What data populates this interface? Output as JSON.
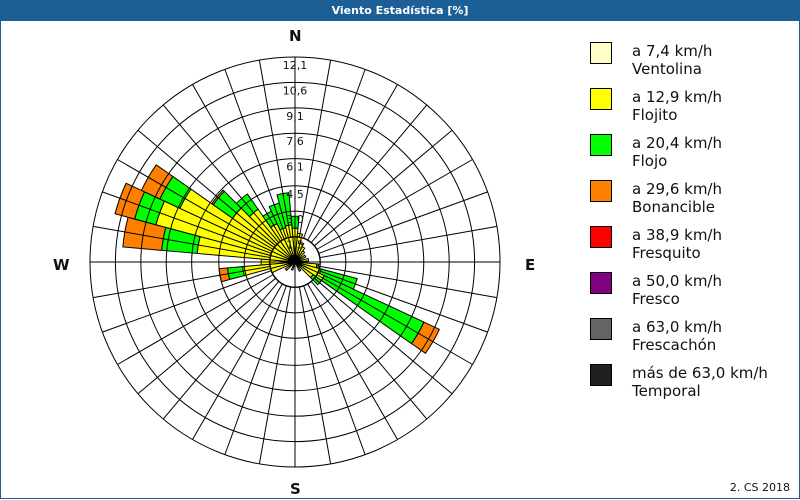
{
  "window": {
    "title": "Viento Estadística [%]"
  },
  "footer": {
    "copyright": "2. CS 2018"
  },
  "compass": {
    "N": "N",
    "E": "E",
    "S": "S",
    "W": "W"
  },
  "legend": [
    {
      "range": "a 7,4 km/h",
      "name": "Ventolina",
      "color": "#ffffc8"
    },
    {
      "range": "a 12,9 km/h",
      "name": "Flojito",
      "color": "#ffff00"
    },
    {
      "range": "a 20,4 km/h",
      "name": "Flojo",
      "color": "#00ff00"
    },
    {
      "range": "a 29,6 km/h",
      "name": "Bonancible",
      "color": "#ff8000"
    },
    {
      "range": "a 38,9 km/h",
      "name": "Fresquito",
      "color": "#ff0000"
    },
    {
      "range": "a 50,0 km/h",
      "name": "Fresco",
      "color": "#800080"
    },
    {
      "range": "a 63,0 km/h",
      "name": "Frescachón",
      "color": "#646464"
    },
    {
      "range": "más de 63,0 km/h",
      "name": "Temporal",
      "color": "#202020"
    }
  ],
  "chart_data": {
    "type": "polar-bar",
    "title": "Viento Estadística [%]",
    "radial_ticks": [
      "1,5",
      "3,0",
      "4,5",
      "6,1",
      "7,6",
      "9,1",
      "10,6",
      "12,1"
    ],
    "radial_values": [
      1.5,
      3.0,
      4.5,
      6.1,
      7.6,
      9.1,
      10.6,
      12.1
    ],
    "rmax": 12.1,
    "sector_width_deg": 10,
    "series_names": [
      "Ventolina",
      "Flojito",
      "Flojo",
      "Bonancible"
    ],
    "sectors": [
      {
        "dir": 0,
        "cum": [
          0.4,
          2.0,
          2.7
        ]
      },
      {
        "dir": 10,
        "cum": [
          0.4,
          1.7,
          1.7
        ]
      },
      {
        "dir": 20,
        "cum": [
          0.3,
          1.2,
          1.2
        ]
      },
      {
        "dir": 30,
        "cum": [
          0.3,
          1.0,
          1.0
        ]
      },
      {
        "dir": 40,
        "cum": [
          0.3,
          0.8,
          0.8
        ]
      },
      {
        "dir": 60,
        "cum": [
          0.3,
          0.7,
          0.7
        ]
      },
      {
        "dir": 80,
        "cum": [
          0.3,
          0.8,
          0.8
        ]
      },
      {
        "dir": 100,
        "cum": [
          0.4,
          1.3,
          1.4
        ]
      },
      {
        "dir": 110,
        "cum": [
          0.4,
          1.6,
          3.8
        ]
      },
      {
        "dir": 120,
        "cum": [
          0.4,
          1.9,
          8.4,
          9.4
        ]
      },
      {
        "dir": 130,
        "cum": [
          0.3,
          1.3,
          1.9
        ]
      },
      {
        "dir": 150,
        "cum": [
          0.3,
          0.6,
          0.6
        ]
      },
      {
        "dir": 200,
        "cum": [
          0.3,
          0.5,
          0.5
        ]
      },
      {
        "dir": 230,
        "cum": [
          0.3,
          0.7,
          0.7
        ]
      },
      {
        "dir": 250,
        "cum": [
          0.3,
          1.5,
          1.5
        ]
      },
      {
        "dir": 260,
        "cum": [
          0.4,
          3.1,
          4.0,
          4.5
        ]
      },
      {
        "dir": 270,
        "cum": [
          0.4,
          2.0,
          2.0
        ]
      },
      {
        "dir": 280,
        "cum": [
          0.4,
          5.8,
          7.9,
          10.2
        ]
      },
      {
        "dir": 290,
        "cum": [
          0.4,
          8.5,
          9.8,
          11.0
        ]
      },
      {
        "dir": 300,
        "cum": [
          0.4,
          7.5,
          8.8,
          10.0
        ]
      },
      {
        "dir": 310,
        "cum": [
          0.4,
          4.5,
          5.9,
          6.0
        ]
      },
      {
        "dir": 320,
        "cum": [
          0.4,
          3.8,
          4.9
        ]
      },
      {
        "dir": 330,
        "cum": [
          0.4,
          2.5,
          3.3
        ]
      },
      {
        "dir": 340,
        "cum": [
          0.4,
          2.1,
          3.6
        ]
      },
      {
        "dir": 350,
        "cum": [
          0.4,
          2.2,
          4.1
        ]
      }
    ]
  }
}
